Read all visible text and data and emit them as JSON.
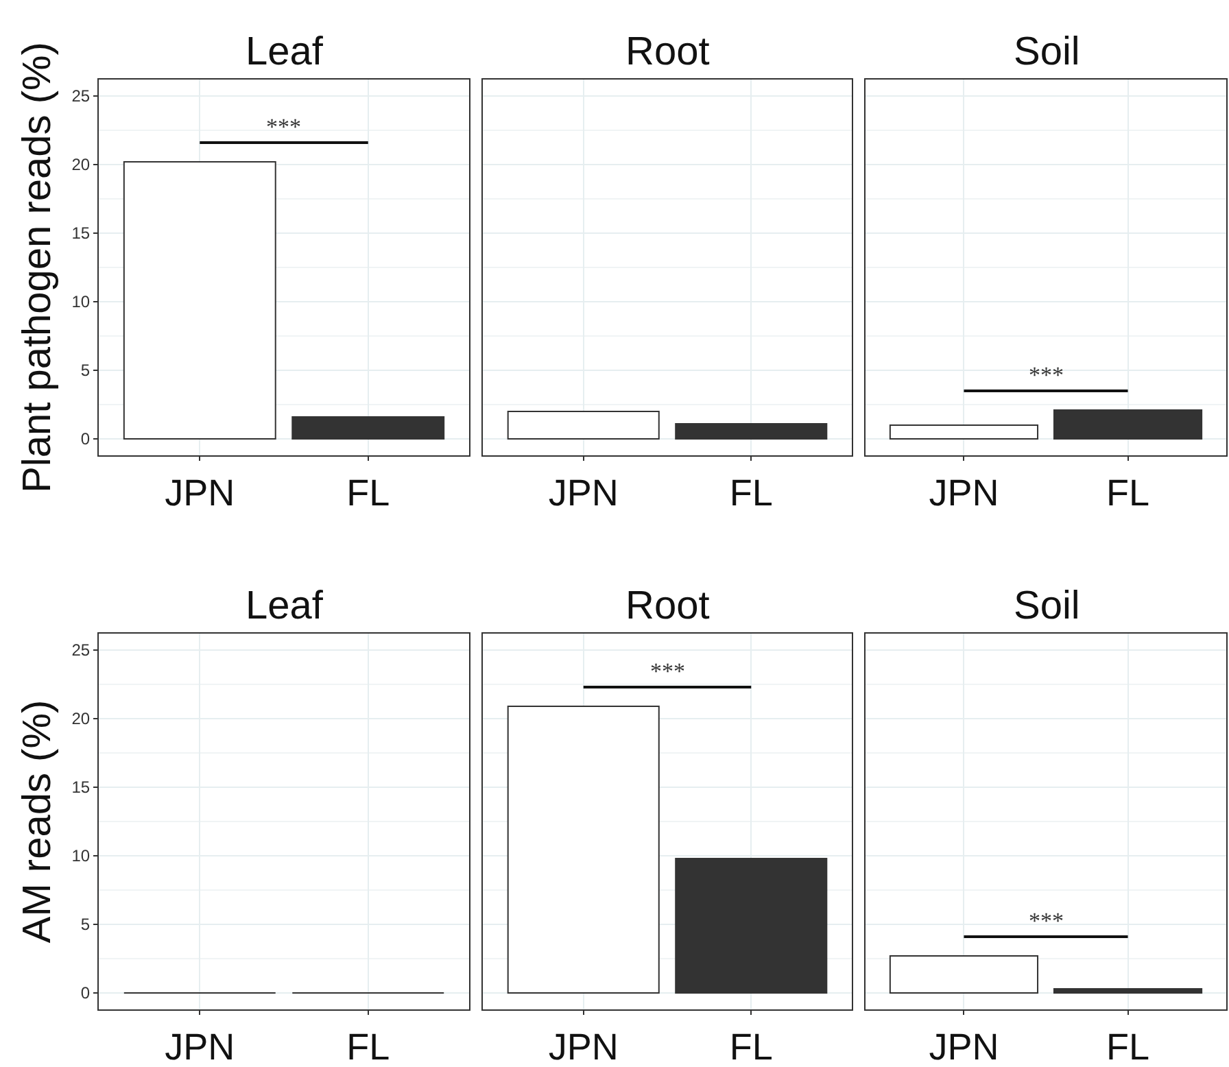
{
  "chart_data": [
    {
      "type": "bar",
      "title": "Leaf",
      "ylabel": "Plant pathogen reads (%)",
      "categories": [
        "JPN",
        "FL"
      ],
      "values": [
        20.2,
        1.6
      ],
      "colors": [
        "#ffffff",
        "#333333"
      ],
      "ylim": [
        -1.2,
        26.2
      ],
      "yticks": [
        0,
        5,
        10,
        15,
        20,
        25
      ],
      "grid": true,
      "annotations": [
        "***"
      ]
    },
    {
      "type": "bar",
      "title": "Root",
      "categories": [
        "JPN",
        "FL"
      ],
      "values": [
        2.0,
        1.1
      ],
      "colors": [
        "#ffffff",
        "#333333"
      ],
      "ylim": [
        -1.2,
        26.2
      ],
      "yticks": [
        0,
        5,
        10,
        15,
        20,
        25
      ],
      "grid": true,
      "tick_labels": "x"
    },
    {
      "type": "bar",
      "title": "Soil",
      "categories": [
        "JPN",
        "FL"
      ],
      "values": [
        1.0,
        2.1
      ],
      "colors": [
        "#ffffff",
        "#333333"
      ],
      "ylim": [
        -1.2,
        26.2
      ],
      "yticks": [
        0,
        5,
        10,
        15,
        20,
        25
      ],
      "grid": true,
      "tick_labels": "x",
      "annotations": [
        "***"
      ]
    },
    {
      "type": "bar",
      "title": "Leaf",
      "ylabel": "AM reads (%)",
      "categories": [
        "JPN",
        "FL"
      ],
      "values": [
        0,
        0
      ],
      "colors": [
        "#ffffff",
        "#333333"
      ],
      "ylim": [
        -1.2,
        26.2
      ],
      "yticks": [
        0,
        5,
        10,
        15,
        20,
        25
      ],
      "grid": true
    },
    {
      "type": "bar",
      "title": "Root",
      "categories": [
        "JPN",
        "FL"
      ],
      "values": [
        20.9,
        9.8
      ],
      "colors": [
        "#ffffff",
        "#333333"
      ],
      "ylim": [
        -1.2,
        26.2
      ],
      "yticks": [
        0,
        5,
        10,
        15,
        20,
        25
      ],
      "grid": true,
      "tick_labels": "x",
      "annotations": [
        "***"
      ]
    },
    {
      "type": "bar",
      "title": "Soil",
      "categories": [
        "JPN",
        "FL"
      ],
      "values": [
        2.7,
        0.3
      ],
      "colors": [
        "#ffffff",
        "#333333"
      ],
      "ylim": [
        -1.2,
        26.2
      ],
      "yticks": [
        0,
        5,
        10,
        15,
        20,
        25
      ],
      "grid": true,
      "tick_labels": "x",
      "annotations": [
        "***"
      ]
    }
  ]
}
